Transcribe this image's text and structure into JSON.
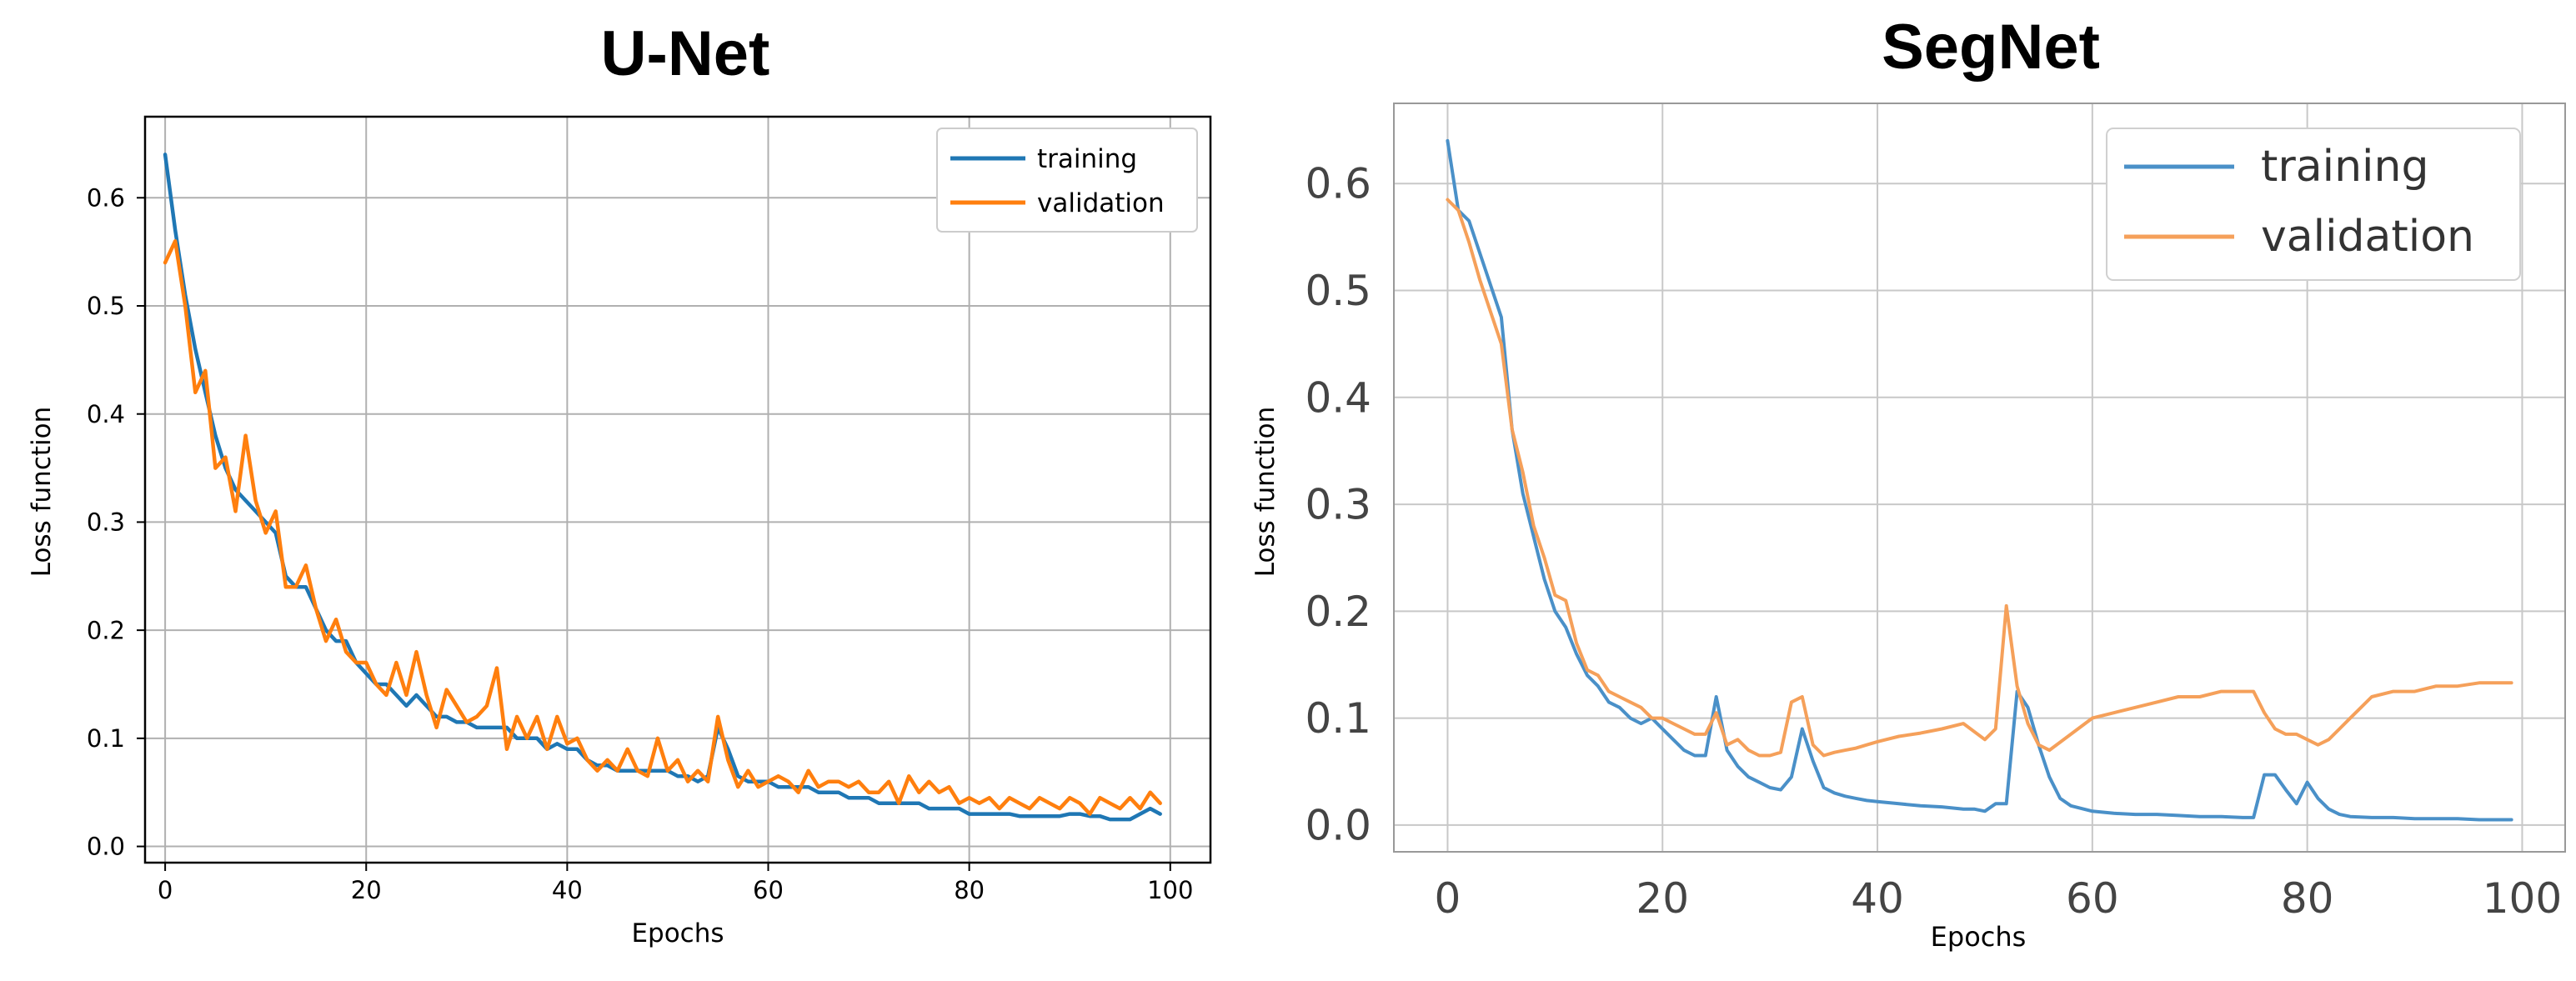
{
  "chart_data": [
    {
      "type": "line",
      "title": "U-Net",
      "xlabel": "Epochs",
      "ylabel": "Loss function",
      "xlim": [
        -2,
        104
      ],
      "ylim": [
        -0.015,
        0.675
      ],
      "x_ticks": [
        0,
        20,
        40,
        60,
        80,
        100
      ],
      "x_tick_labels": [
        "0",
        "20",
        "40",
        "60",
        "80",
        "100"
      ],
      "y_ticks": [
        0.0,
        0.1,
        0.2,
        0.3,
        0.4,
        0.5,
        0.6
      ],
      "y_tick_labels": [
        "0.0",
        "0.1",
        "0.2",
        "0.3",
        "0.4",
        "0.5",
        "0.6"
      ],
      "grid": true,
      "legend_position": "top-right",
      "series": [
        {
          "name": "training",
          "color": "#1f77b4",
          "x": [
            0,
            1,
            2,
            3,
            4,
            5,
            6,
            7,
            8,
            9,
            10,
            11,
            12,
            13,
            14,
            15,
            16,
            17,
            18,
            19,
            20,
            21,
            22,
            23,
            24,
            25,
            26,
            27,
            28,
            29,
            30,
            31,
            32,
            33,
            34,
            35,
            36,
            37,
            38,
            39,
            40,
            41,
            42,
            43,
            44,
            45,
            46,
            47,
            48,
            49,
            50,
            51,
            52,
            53,
            54,
            55,
            56,
            57,
            58,
            59,
            60,
            61,
            62,
            63,
            64,
            65,
            66,
            67,
            68,
            69,
            70,
            71,
            72,
            73,
            74,
            75,
            76,
            77,
            78,
            79,
            80,
            81,
            82,
            83,
            84,
            85,
            86,
            87,
            88,
            89,
            90,
            91,
            92,
            93,
            94,
            95,
            96,
            97,
            98,
            99
          ],
          "values": [
            0.64,
            0.57,
            0.51,
            0.46,
            0.42,
            0.38,
            0.35,
            0.33,
            0.32,
            0.31,
            0.3,
            0.29,
            0.25,
            0.24,
            0.24,
            0.22,
            0.2,
            0.19,
            0.19,
            0.17,
            0.16,
            0.15,
            0.15,
            0.14,
            0.13,
            0.14,
            0.13,
            0.12,
            0.12,
            0.115,
            0.115,
            0.11,
            0.11,
            0.11,
            0.11,
            0.1,
            0.1,
            0.1,
            0.09,
            0.095,
            0.09,
            0.09,
            0.08,
            0.075,
            0.075,
            0.07,
            0.07,
            0.07,
            0.07,
            0.07,
            0.07,
            0.065,
            0.065,
            0.06,
            0.065,
            0.11,
            0.09,
            0.065,
            0.06,
            0.06,
            0.06,
            0.055,
            0.055,
            0.055,
            0.055,
            0.05,
            0.05,
            0.05,
            0.045,
            0.045,
            0.045,
            0.04,
            0.04,
            0.04,
            0.04,
            0.04,
            0.035,
            0.035,
            0.035,
            0.035,
            0.03,
            0.03,
            0.03,
            0.03,
            0.03,
            0.028,
            0.028,
            0.028,
            0.028,
            0.028,
            0.03,
            0.03,
            0.028,
            0.028,
            0.025,
            0.025,
            0.025,
            0.03,
            0.035,
            0.03
          ]
        },
        {
          "name": "validation",
          "color": "#ff7f0e",
          "x": [
            0,
            1,
            2,
            3,
            4,
            5,
            6,
            7,
            8,
            9,
            10,
            11,
            12,
            13,
            14,
            15,
            16,
            17,
            18,
            19,
            20,
            21,
            22,
            23,
            24,
            25,
            26,
            27,
            28,
            29,
            30,
            31,
            32,
            33,
            34,
            35,
            36,
            37,
            38,
            39,
            40,
            41,
            42,
            43,
            44,
            45,
            46,
            47,
            48,
            49,
            50,
            51,
            52,
            53,
            54,
            55,
            56,
            57,
            58,
            59,
            60,
            61,
            62,
            63,
            64,
            65,
            66,
            67,
            68,
            69,
            70,
            71,
            72,
            73,
            74,
            75,
            76,
            77,
            78,
            79,
            80,
            81,
            82,
            83,
            84,
            85,
            86,
            87,
            88,
            89,
            90,
            91,
            92,
            93,
            94,
            95,
            96,
            97,
            98,
            99
          ],
          "values": [
            0.54,
            0.56,
            0.5,
            0.42,
            0.44,
            0.35,
            0.36,
            0.31,
            0.38,
            0.32,
            0.29,
            0.31,
            0.24,
            0.24,
            0.26,
            0.22,
            0.19,
            0.21,
            0.18,
            0.17,
            0.17,
            0.15,
            0.14,
            0.17,
            0.14,
            0.18,
            0.14,
            0.11,
            0.145,
            0.13,
            0.115,
            0.12,
            0.13,
            0.165,
            0.09,
            0.12,
            0.1,
            0.12,
            0.09,
            0.12,
            0.095,
            0.1,
            0.08,
            0.07,
            0.08,
            0.07,
            0.09,
            0.07,
            0.065,
            0.1,
            0.07,
            0.08,
            0.06,
            0.07,
            0.06,
            0.12,
            0.08,
            0.055,
            0.07,
            0.055,
            0.06,
            0.065,
            0.06,
            0.05,
            0.07,
            0.055,
            0.06,
            0.06,
            0.055,
            0.06,
            0.05,
            0.05,
            0.06,
            0.04,
            0.065,
            0.05,
            0.06,
            0.05,
            0.055,
            0.04,
            0.045,
            0.04,
            0.045,
            0.035,
            0.045,
            0.04,
            0.035,
            0.045,
            0.04,
            0.035,
            0.045,
            0.04,
            0.03,
            0.045,
            0.04,
            0.035,
            0.045,
            0.035,
            0.05,
            0.04
          ]
        }
      ]
    },
    {
      "type": "line",
      "title": "SegNet",
      "xlabel": "Epochs",
      "ylabel": "Loss function",
      "xlim": [
        -5,
        104
      ],
      "ylim": [
        -0.025,
        0.675
      ],
      "x_ticks": [
        0,
        20,
        40,
        60,
        80,
        100
      ],
      "x_tick_labels": [
        "0",
        "20",
        "40",
        "60",
        "80",
        "100"
      ],
      "y_ticks": [
        0.0,
        0.1,
        0.2,
        0.3,
        0.4,
        0.5,
        0.6
      ],
      "y_tick_labels": [
        "0.0",
        "0.1",
        "0.2",
        "0.3",
        "0.4",
        "0.5",
        "0.6"
      ],
      "grid": true,
      "legend_position": "top-right",
      "series": [
        {
          "name": "training",
          "color": "#4a90c8",
          "x": [
            0,
            1,
            2,
            3,
            4,
            5,
            6,
            7,
            8,
            9,
            10,
            11,
            12,
            13,
            14,
            15,
            16,
            17,
            18,
            19,
            20,
            21,
            22,
            23,
            24,
            25,
            26,
            27,
            28,
            29,
            30,
            31,
            32,
            33,
            34,
            35,
            36,
            37,
            38,
            39,
            40,
            42,
            44,
            46,
            48,
            49,
            50,
            51,
            52,
            53,
            54,
            55,
            56,
            57,
            58,
            60,
            62,
            64,
            66,
            68,
            70,
            72,
            74,
            75,
            76,
            77,
            78,
            79,
            80,
            81,
            82,
            83,
            84,
            86,
            88,
            90,
            92,
            94,
            96,
            98,
            99
          ],
          "values": [
            0.64,
            0.575,
            0.565,
            0.535,
            0.505,
            0.475,
            0.37,
            0.31,
            0.27,
            0.23,
            0.2,
            0.185,
            0.16,
            0.14,
            0.13,
            0.115,
            0.11,
            0.1,
            0.095,
            0.1,
            0.09,
            0.08,
            0.07,
            0.065,
            0.065,
            0.12,
            0.07,
            0.055,
            0.045,
            0.04,
            0.035,
            0.033,
            0.045,
            0.09,
            0.06,
            0.035,
            0.03,
            0.027,
            0.025,
            0.023,
            0.022,
            0.02,
            0.018,
            0.017,
            0.015,
            0.015,
            0.013,
            0.02,
            0.02,
            0.125,
            0.11,
            0.075,
            0.045,
            0.025,
            0.018,
            0.013,
            0.011,
            0.01,
            0.01,
            0.009,
            0.008,
            0.008,
            0.007,
            0.007,
            0.047,
            0.047,
            0.033,
            0.02,
            0.04,
            0.025,
            0.015,
            0.01,
            0.008,
            0.007,
            0.007,
            0.006,
            0.006,
            0.006,
            0.005,
            0.005,
            0.005
          ]
        },
        {
          "name": "validation",
          "color": "#f5a05a",
          "x": [
            0,
            1,
            2,
            3,
            4,
            5,
            6,
            7,
            8,
            9,
            10,
            11,
            12,
            13,
            14,
            15,
            16,
            17,
            18,
            19,
            20,
            21,
            22,
            23,
            24,
            25,
            26,
            27,
            28,
            29,
            30,
            31,
            32,
            33,
            34,
            35,
            36,
            37,
            38,
            39,
            40,
            42,
            44,
            46,
            48,
            50,
            51,
            52,
            53,
            54,
            55,
            56,
            58,
            60,
            62,
            64,
            66,
            68,
            70,
            72,
            74,
            75,
            76,
            77,
            78,
            79,
            80,
            81,
            82,
            83,
            84,
            85,
            86,
            88,
            90,
            92,
            94,
            96,
            98,
            99
          ],
          "values": [
            0.585,
            0.575,
            0.545,
            0.51,
            0.48,
            0.45,
            0.37,
            0.33,
            0.28,
            0.25,
            0.215,
            0.21,
            0.17,
            0.145,
            0.14,
            0.125,
            0.12,
            0.115,
            0.11,
            0.1,
            0.1,
            0.095,
            0.09,
            0.085,
            0.085,
            0.105,
            0.075,
            0.08,
            0.07,
            0.065,
            0.065,
            0.068,
            0.115,
            0.12,
            0.075,
            0.065,
            0.068,
            0.07,
            0.072,
            0.075,
            0.078,
            0.083,
            0.086,
            0.09,
            0.095,
            0.08,
            0.09,
            0.205,
            0.13,
            0.095,
            0.075,
            0.07,
            0.085,
            0.1,
            0.105,
            0.11,
            0.115,
            0.12,
            0.12,
            0.125,
            0.125,
            0.125,
            0.105,
            0.09,
            0.085,
            0.085,
            0.08,
            0.075,
            0.08,
            0.09,
            0.1,
            0.11,
            0.12,
            0.125,
            0.125,
            0.13,
            0.13,
            0.133,
            0.133,
            0.133
          ]
        }
      ]
    }
  ]
}
